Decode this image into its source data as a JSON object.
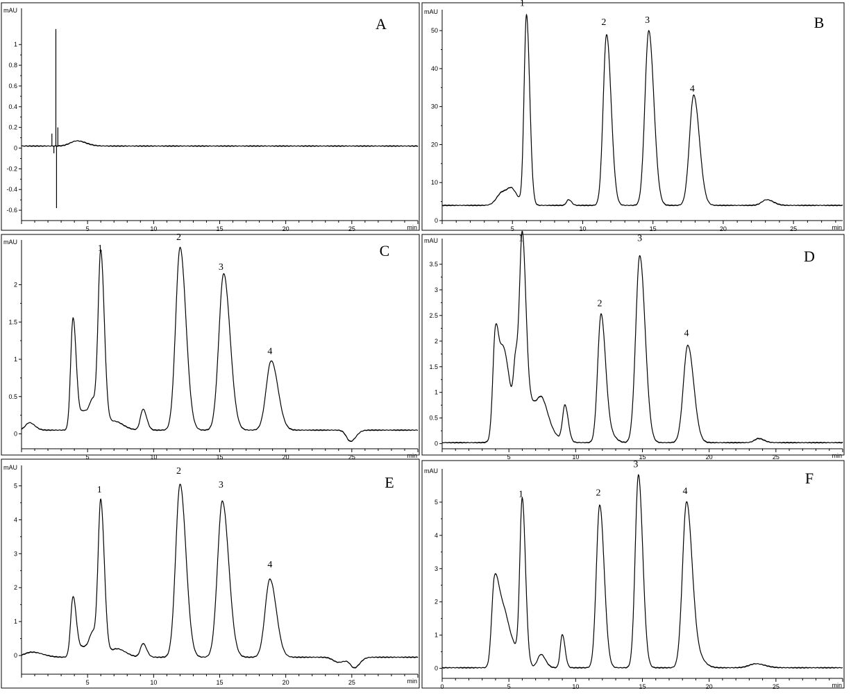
{
  "chart_data": [
    {
      "type": "line",
      "panel_label": "A",
      "y_unit": "mAU",
      "x_unit": "min",
      "xlim": [
        0,
        30
      ],
      "ylim": [
        -0.7,
        1.35
      ],
      "x_ticks": [
        5,
        10,
        15,
        20,
        25
      ],
      "y_ticks": [
        -0.6,
        -0.4,
        -0.2,
        0,
        0.2,
        0.4,
        0.6,
        0.8,
        1
      ],
      "y_tick_labels": [
        "-0.6",
        "-0.4",
        "-0.2",
        "0",
        "0.2",
        "0.4",
        "0.6",
        "0.8",
        "1"
      ],
      "baseline": 0.02,
      "spikes": [
        {
          "x": 2.3,
          "y": 0.14
        },
        {
          "x": 2.45,
          "y": -0.05
        },
        {
          "x": 2.6,
          "y": 1.15
        },
        {
          "x": 2.65,
          "y": -0.58
        },
        {
          "x": 2.75,
          "y": 0.2
        }
      ],
      "peaks": [
        {
          "x": 4.2,
          "height": 0.05,
          "width": 0.5
        }
      ],
      "peak_labels": []
    },
    {
      "type": "line",
      "panel_label": "B",
      "y_unit": "mAU",
      "x_unit": "min",
      "xlim": [
        0,
        28.5
      ],
      "ylim": [
        0,
        55.5
      ],
      "x_ticks": [
        5,
        10,
        15,
        20,
        25
      ],
      "y_ticks": [
        0,
        10,
        20,
        30,
        40,
        50
      ],
      "y_tick_labels": [
        "0",
        "10",
        "20",
        "30",
        "40",
        "50"
      ],
      "baseline": 4,
      "spikes": [],
      "peaks": [
        {
          "x": 4.3,
          "height": 3.5,
          "width": 0.4
        },
        {
          "x": 5.0,
          "height": 3.0,
          "width": 0.3
        },
        {
          "x": 6.0,
          "height": 50,
          "width": 0.17
        },
        {
          "x": 9.0,
          "height": 1.5,
          "width": 0.15
        },
        {
          "x": 11.7,
          "height": 45,
          "width": 0.24
        },
        {
          "x": 14.7,
          "height": 46,
          "width": 0.27
        },
        {
          "x": 17.9,
          "height": 29,
          "width": 0.3
        },
        {
          "x": 23.1,
          "height": 1.5,
          "width": 0.35
        }
      ],
      "peak_labels": [
        {
          "text": "1",
          "x": 5.7,
          "y": 56.5
        },
        {
          "text": "2",
          "x": 11.5,
          "y": 51.5
        },
        {
          "text": "3",
          "x": 14.6,
          "y": 52
        },
        {
          "text": "4",
          "x": 17.8,
          "y": 34
        }
      ]
    },
    {
      "type": "line",
      "panel_label": "C",
      "y_unit": "mAU",
      "x_unit": "min",
      "xlim": [
        0,
        30
      ],
      "ylim": [
        -0.2,
        2.6
      ],
      "x_ticks": [
        5,
        10,
        15,
        20,
        25
      ],
      "y_ticks": [
        0,
        0.5,
        1,
        1.5,
        2
      ],
      "y_tick_labels": [
        "0",
        "0.5",
        "1",
        "1.5",
        "2"
      ],
      "baseline": 0.05,
      "spikes": [],
      "peaks": [
        {
          "x": 0.6,
          "height": 0.1,
          "width": 0.3
        },
        {
          "x": 3.9,
          "height": 1.5,
          "width": 0.18
        },
        {
          "x": 4.7,
          "height": 0.25,
          "width": 0.3
        },
        {
          "x": 5.4,
          "height": 0.35,
          "width": 0.25
        },
        {
          "x": 6.0,
          "height": 2.33,
          "width": 0.2
        },
        {
          "x": 7.0,
          "height": 0.12,
          "width": 0.5
        },
        {
          "x": 9.2,
          "height": 0.28,
          "width": 0.2
        },
        {
          "x": 12.0,
          "height": 2.45,
          "width": 0.33
        },
        {
          "x": 15.3,
          "height": 2.1,
          "width": 0.36
        },
        {
          "x": 18.9,
          "height": 0.93,
          "width": 0.38
        },
        {
          "x": 24.9,
          "height": -0.15,
          "width": 0.3
        }
      ],
      "peak_labels": [
        {
          "text": "1",
          "x": 5.95,
          "y": 2.45
        },
        {
          "text": "2",
          "x": 11.9,
          "y": 2.6
        },
        {
          "text": "3",
          "x": 15.1,
          "y": 2.2
        },
        {
          "text": "4",
          "x": 18.8,
          "y": 1.07
        }
      ]
    },
    {
      "type": "line",
      "panel_label": "D",
      "y_unit": "mAU",
      "x_unit": "min",
      "xlim": [
        0,
        30
      ],
      "ylim": [
        -0.1,
        4.0
      ],
      "x_ticks": [
        5,
        10,
        15,
        20,
        25
      ],
      "y_ticks": [
        0,
        0.5,
        1,
        1.5,
        2,
        2.5,
        3,
        3.5
      ],
      "y_tick_labels": [
        "0",
        "0.5",
        "1",
        "1.5",
        "2",
        "2.5",
        "3",
        "3.5"
      ],
      "baseline": 0.02,
      "spikes": [],
      "peaks": [
        {
          "x": 4.0,
          "height": 2.1,
          "width": 0.2
        },
        {
          "x": 4.6,
          "height": 1.2,
          "width": 0.25
        },
        {
          "x": 5.1,
          "height": 0.7,
          "width": 0.6
        },
        {
          "x": 5.5,
          "height": 0.9,
          "width": 0.15
        },
        {
          "x": 6.0,
          "height": 3.4,
          "width": 0.2
        },
        {
          "x": 6.9,
          "height": 0.7,
          "width": 0.7
        },
        {
          "x": 7.5,
          "height": 0.3,
          "width": 0.3
        },
        {
          "x": 9.2,
          "height": 0.7,
          "width": 0.18
        },
        {
          "x": 11.9,
          "height": 2.5,
          "width": 0.25
        },
        {
          "x": 12.6,
          "height": 0.15,
          "width": 0.3
        },
        {
          "x": 14.8,
          "height": 3.65,
          "width": 0.3
        },
        {
          "x": 18.4,
          "height": 1.9,
          "width": 0.33
        },
        {
          "x": 23.7,
          "height": 0.08,
          "width": 0.3
        }
      ],
      "peak_labels": [
        {
          "text": "1",
          "x": 5.9,
          "y": 3.95
        },
        {
          "text": "2",
          "x": 11.8,
          "y": 2.68
        },
        {
          "text": "3",
          "x": 14.8,
          "y": 3.95
        },
        {
          "text": "4",
          "x": 18.3,
          "y": 2.1
        }
      ]
    },
    {
      "type": "line",
      "panel_label": "E",
      "y_unit": "mAU",
      "x_unit": "min",
      "xlim": [
        0,
        30
      ],
      "ylim": [
        -0.55,
        5.6
      ],
      "x_ticks": [
        5,
        10,
        15,
        20,
        25
      ],
      "y_ticks": [
        0,
        1,
        2,
        3,
        4,
        5
      ],
      "y_tick_labels": [
        "0",
        "1",
        "2",
        "3",
        "4",
        "5"
      ],
      "baseline": -0.05,
      "spikes": [],
      "peaks": [
        {
          "x": 0.8,
          "height": 0.15,
          "width": 0.6
        },
        {
          "x": 3.9,
          "height": 1.75,
          "width": 0.18
        },
        {
          "x": 4.7,
          "height": 0.3,
          "width": 0.4
        },
        {
          "x": 5.4,
          "height": 0.6,
          "width": 0.25
        },
        {
          "x": 6.0,
          "height": 4.5,
          "width": 0.2
        },
        {
          "x": 7.2,
          "height": 0.25,
          "width": 0.5
        },
        {
          "x": 9.2,
          "height": 0.4,
          "width": 0.2
        },
        {
          "x": 12.0,
          "height": 5.1,
          "width": 0.33
        },
        {
          "x": 15.2,
          "height": 4.6,
          "width": 0.36
        },
        {
          "x": 18.8,
          "height": 2.3,
          "width": 0.36
        },
        {
          "x": 24.0,
          "height": -0.15,
          "width": 0.4
        },
        {
          "x": 25.2,
          "height": -0.3,
          "width": 0.3
        }
      ],
      "peak_labels": [
        {
          "text": "1",
          "x": 5.9,
          "y": 4.8
        },
        {
          "text": "2",
          "x": 11.9,
          "y": 5.35
        },
        {
          "text": "3",
          "x": 15.1,
          "y": 4.95
        },
        {
          "text": "4",
          "x": 18.8,
          "y": 2.6
        }
      ]
    },
    {
      "type": "line",
      "panel_label": "F",
      "y_unit": "mAU",
      "x_unit": "min",
      "xlim": [
        0,
        30
      ],
      "ylim": [
        -0.3,
        6.0
      ],
      "x_ticks": [
        0,
        5,
        10,
        15,
        20,
        25
      ],
      "y_ticks": [
        0,
        1,
        2,
        3,
        4,
        5
      ],
      "y_tick_labels": [
        "0",
        "1",
        "2",
        "3",
        "4",
        "5"
      ],
      "baseline": 0.02,
      "spikes": [],
      "peaks": [
        {
          "x": 3.9,
          "height": 2.3,
          "width": 0.2
        },
        {
          "x": 4.4,
          "height": 1.4,
          "width": 0.3
        },
        {
          "x": 5.0,
          "height": 0.8,
          "width": 0.5
        },
        {
          "x": 6.0,
          "height": 4.85,
          "width": 0.18
        },
        {
          "x": 7.4,
          "height": 0.4,
          "width": 0.25
        },
        {
          "x": 9.0,
          "height": 1.0,
          "width": 0.15
        },
        {
          "x": 11.8,
          "height": 4.9,
          "width": 0.25
        },
        {
          "x": 14.7,
          "height": 5.8,
          "width": 0.24
        },
        {
          "x": 18.3,
          "height": 4.9,
          "width": 0.3
        },
        {
          "x": 19.0,
          "height": 0.4,
          "width": 0.4
        },
        {
          "x": 23.5,
          "height": 0.12,
          "width": 0.5
        }
      ],
      "peak_labels": [
        {
          "text": "1",
          "x": 5.9,
          "y": 5.15
        },
        {
          "text": "2",
          "x": 11.7,
          "y": 5.2
        },
        {
          "text": "3",
          "x": 14.5,
          "y": 6.05
        },
        {
          "text": "4",
          "x": 18.2,
          "y": 5.25
        }
      ]
    }
  ]
}
